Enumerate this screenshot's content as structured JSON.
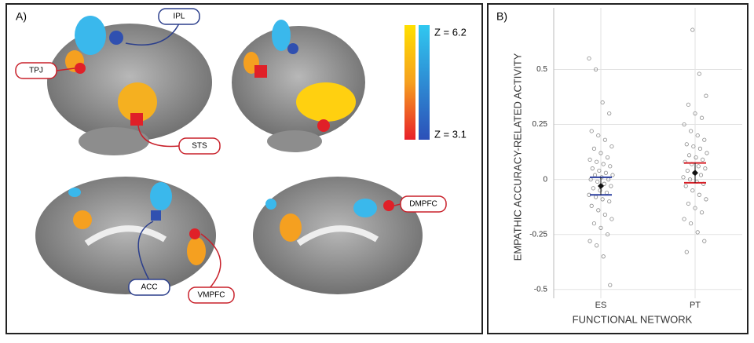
{
  "panel_a": {
    "label": "A)",
    "regions": [
      "IPL",
      "TPJ",
      "STS",
      "ACC",
      "VMPFC",
      "DMPFC"
    ],
    "scale": {
      "max": "Z = 6.2",
      "min": "Z = 3.1"
    }
  },
  "chart_data": {
    "type": "strip",
    "label": "B)",
    "y_label": "EMPATHIC ACCURACY-RELATED ACTIVITY",
    "x_label": "FUNCTIONAL NETWORK",
    "categories": [
      "ES",
      "PT"
    ],
    "groups": [
      {
        "values": [
          0.55,
          0.5,
          0.35,
          0.3,
          0.22,
          0.2,
          0.18,
          0.15,
          0.14,
          0.12,
          0.1,
          0.09,
          0.08,
          0.07,
          0.06,
          0.05,
          0.04,
          0.03,
          0.02,
          0.02,
          0.01,
          0,
          0,
          -0.01,
          -0.02,
          -0.03,
          -0.04,
          -0.05,
          -0.06,
          -0.07,
          -0.08,
          -0.09,
          -0.1,
          -0.12,
          -0.14,
          -0.16,
          -0.18,
          -0.2,
          -0.22,
          -0.25,
          -0.28,
          -0.3,
          -0.35,
          -0.48
        ],
        "mean": -0.03,
        "error": 0.04,
        "ci_color": "#2b3fa0"
      },
      {
        "values": [
          0.68,
          0.48,
          0.38,
          0.34,
          0.3,
          0.28,
          0.25,
          0.22,
          0.2,
          0.18,
          0.16,
          0.15,
          0.14,
          0.12,
          0.11,
          0.1,
          0.09,
          0.08,
          0.07,
          0.06,
          0.05,
          0.04,
          0.03,
          0.02,
          0.01,
          0,
          -0.01,
          -0.02,
          -0.03,
          -0.05,
          -0.07,
          -0.09,
          -0.11,
          -0.13,
          -0.15,
          -0.18,
          -0.2,
          -0.24,
          -0.28,
          -0.33
        ],
        "mean": 0.03,
        "error": 0.045,
        "ci_color": "#d62028"
      }
    ],
    "point_color": "#8a8a8a",
    "mean_color": "#111111",
    "ylim": [
      -0.54,
      0.78
    ],
    "yticks": [
      -0.5,
      -0.25,
      0,
      0.25,
      0.5
    ],
    "grid": true
  }
}
